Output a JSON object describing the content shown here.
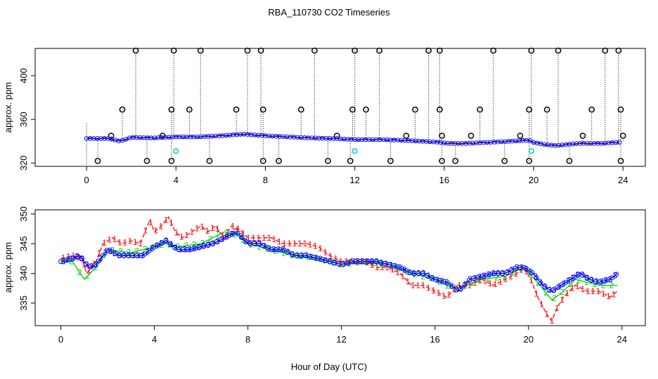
{
  "chart_data": [
    {
      "type": "scatter",
      "title": "RBA_110730  CO2 Timeseries",
      "xlabel": "",
      "ylabel": "approx. ppm",
      "xlim": [
        -2.3,
        25
      ],
      "ylim": [
        317,
        425
      ],
      "xticks": [
        0,
        4,
        8,
        12,
        16,
        20,
        24
      ],
      "xtick_labels": [
        "0",
        "4",
        "8",
        "12",
        "16",
        "20",
        "24"
      ],
      "yticks": [
        320,
        360,
        400
      ],
      "ytick_labels": [
        "320",
        "360",
        "400"
      ],
      "baseline": [
        [
          0.0,
          342.5
        ],
        [
          1.0,
          342.5
        ],
        [
          1.5,
          340
        ],
        [
          2.0,
          343.5
        ],
        [
          3.0,
          343
        ],
        [
          4.0,
          344
        ],
        [
          5.0,
          344
        ],
        [
          6.0,
          345
        ],
        [
          7.0,
          346.5
        ],
        [
          8.0,
          345
        ],
        [
          9.0,
          344
        ],
        [
          10.0,
          343
        ],
        [
          11.0,
          342.5
        ],
        [
          12.0,
          341.5
        ],
        [
          13.0,
          341.5
        ],
        [
          14.0,
          341
        ],
        [
          15.0,
          340
        ],
        [
          15.8,
          339
        ],
        [
          16.2,
          338
        ],
        [
          17.0,
          338
        ],
        [
          18.0,
          339
        ],
        [
          19.0,
          340
        ],
        [
          19.8,
          341
        ],
        [
          20.0,
          339
        ],
        [
          20.5,
          337
        ],
        [
          21.0,
          336
        ],
        [
          21.5,
          337
        ],
        [
          22.0,
          338
        ],
        [
          23.0,
          338
        ],
        [
          23.8,
          339
        ]
      ],
      "spikes": [
        {
          "x": 2.2,
          "y": 423
        },
        {
          "x": 3.9,
          "y": 423
        },
        {
          "x": 5.1,
          "y": 423
        },
        {
          "x": 7.2,
          "y": 423
        },
        {
          "x": 7.8,
          "y": 423
        },
        {
          "x": 10.2,
          "y": 423
        },
        {
          "x": 12.0,
          "y": 423
        },
        {
          "x": 13.1,
          "y": 423
        },
        {
          "x": 15.3,
          "y": 423
        },
        {
          "x": 15.8,
          "y": 423
        },
        {
          "x": 18.2,
          "y": 423
        },
        {
          "x": 19.9,
          "y": 423
        },
        {
          "x": 21.1,
          "y": 423
        },
        {
          "x": 23.2,
          "y": 423
        },
        {
          "x": 23.8,
          "y": 423
        },
        {
          "x": 1.6,
          "y": 369
        },
        {
          "x": 3.8,
          "y": 369
        },
        {
          "x": 4.6,
          "y": 369
        },
        {
          "x": 6.7,
          "y": 369
        },
        {
          "x": 7.9,
          "y": 369
        },
        {
          "x": 9.6,
          "y": 369
        },
        {
          "x": 11.9,
          "y": 369
        },
        {
          "x": 12.5,
          "y": 369
        },
        {
          "x": 14.7,
          "y": 369
        },
        {
          "x": 15.8,
          "y": 369
        },
        {
          "x": 17.6,
          "y": 369
        },
        {
          "x": 19.8,
          "y": 369
        },
        {
          "x": 20.6,
          "y": 369
        },
        {
          "x": 22.6,
          "y": 369
        },
        {
          "x": 23.9,
          "y": 369
        },
        {
          "x": 0.5,
          "y": 322
        },
        {
          "x": 2.7,
          "y": 322
        },
        {
          "x": 3.8,
          "y": 322
        },
        {
          "x": 5.5,
          "y": 322
        },
        {
          "x": 7.9,
          "y": 322
        },
        {
          "x": 8.6,
          "y": 322
        },
        {
          "x": 10.8,
          "y": 322
        },
        {
          "x": 11.8,
          "y": 322
        },
        {
          "x": 13.6,
          "y": 322
        },
        {
          "x": 15.9,
          "y": 322
        },
        {
          "x": 16.5,
          "y": 322
        },
        {
          "x": 18.7,
          "y": 322
        },
        {
          "x": 19.8,
          "y": 322
        },
        {
          "x": 21.6,
          "y": 322
        },
        {
          "x": 23.9,
          "y": 322
        },
        {
          "x": 1.1,
          "y": 345
        },
        {
          "x": 3.4,
          "y": 345
        },
        {
          "x": 11.2,
          "y": 345
        },
        {
          "x": 14.3,
          "y": 345
        },
        {
          "x": 15.9,
          "y": 345
        },
        {
          "x": 17.2,
          "y": 345
        },
        {
          "x": 19.4,
          "y": 345
        },
        {
          "x": 22.2,
          "y": 345
        },
        {
          "x": 24.0,
          "y": 345
        }
      ],
      "cyan_points": [
        {
          "x": 4.0,
          "y": 331
        },
        {
          "x": 12.0,
          "y": 331
        },
        {
          "x": 19.9,
          "y": 331
        }
      ]
    },
    {
      "type": "line",
      "title": "",
      "xlabel": "Hour of Day (UTC)",
      "ylabel": "approx. ppm",
      "xlim": [
        -1.1,
        25
      ],
      "ylim": [
        331.2,
        350.7
      ],
      "xticks": [
        0,
        4,
        8,
        12,
        16,
        20,
        24
      ],
      "xtick_labels": [
        "0",
        "4",
        "8",
        "12",
        "16",
        "20",
        "24"
      ],
      "yticks": [
        335,
        340,
        345,
        350
      ],
      "ytick_labels": [
        "335",
        "340",
        "345",
        "350"
      ],
      "series": [
        {
          "name": "1",
          "color": "#ff0000",
          "points": [
            [
              0.0,
              342.5
            ],
            [
              0.5,
              343
            ],
            [
              0.9,
              342.5
            ],
            [
              1.1,
              340
            ],
            [
              1.3,
              341
            ],
            [
              1.5,
              342
            ],
            [
              1.8,
              345
            ],
            [
              2.2,
              346
            ],
            [
              2.6,
              345
            ],
            [
              3.0,
              345.5
            ],
            [
              3.4,
              345
            ],
            [
              3.8,
              349
            ],
            [
              4.0,
              347
            ],
            [
              4.3,
              348
            ],
            [
              4.6,
              349.5
            ],
            [
              4.9,
              347
            ],
            [
              5.2,
              346
            ],
            [
              5.6,
              347
            ],
            [
              6.0,
              348
            ],
            [
              6.3,
              347
            ],
            [
              6.6,
              348
            ],
            [
              7.0,
              346
            ],
            [
              7.3,
              348
            ],
            [
              7.6,
              347.5
            ],
            [
              8.0,
              346
            ],
            [
              8.5,
              346
            ],
            [
              9.0,
              346
            ],
            [
              9.5,
              345
            ],
            [
              10.0,
              345
            ],
            [
              10.5,
              345
            ],
            [
              11.0,
              344.5
            ],
            [
              11.5,
              343
            ],
            [
              12.0,
              342
            ],
            [
              12.5,
              342
            ],
            [
              13.0,
              342
            ],
            [
              13.5,
              341
            ],
            [
              14.0,
              341
            ],
            [
              14.5,
              340
            ],
            [
              15.0,
              338
            ],
            [
              15.5,
              338
            ],
            [
              16.0,
              337
            ],
            [
              16.5,
              336
            ],
            [
              17.0,
              338
            ],
            [
              17.5,
              338
            ],
            [
              18.0,
              339
            ],
            [
              18.5,
              338
            ],
            [
              19.0,
              339
            ],
            [
              19.5,
              340
            ],
            [
              19.8,
              341
            ],
            [
              20.1,
              339
            ],
            [
              20.4,
              336
            ],
            [
              20.8,
              333
            ],
            [
              21.0,
              332
            ],
            [
              21.2,
              334
            ],
            [
              21.5,
              336
            ],
            [
              22.0,
              338
            ],
            [
              22.5,
              337
            ],
            [
              23.0,
              337
            ],
            [
              23.5,
              336
            ],
            [
              23.8,
              337
            ]
          ]
        },
        {
          "name": "2",
          "color": "#00cc00",
          "points": [
            [
              0.0,
              342
            ],
            [
              0.5,
              342
            ],
            [
              1.0,
              339
            ],
            [
              1.5,
              341
            ],
            [
              2.0,
              344
            ],
            [
              3.0,
              343.5
            ],
            [
              4.0,
              344.5
            ],
            [
              4.5,
              345
            ],
            [
              5.0,
              344.5
            ],
            [
              6.0,
              345
            ],
            [
              7.0,
              347
            ],
            [
              7.5,
              346.5
            ],
            [
              8.0,
              345
            ],
            [
              9.0,
              344
            ],
            [
              10.0,
              343
            ],
            [
              11.0,
              342.5
            ],
            [
              12.0,
              341.5
            ],
            [
              13.0,
              342
            ],
            [
              14.0,
              341.5
            ],
            [
              15.0,
              340
            ],
            [
              16.0,
              339
            ],
            [
              16.5,
              338
            ],
            [
              17.0,
              337.5
            ],
            [
              18.0,
              339
            ],
            [
              19.0,
              339.5
            ],
            [
              19.8,
              341
            ],
            [
              20.5,
              338
            ],
            [
              21.0,
              335.5
            ],
            [
              21.5,
              337
            ],
            [
              22.0,
              339
            ],
            [
              23.0,
              338
            ],
            [
              23.8,
              338
            ]
          ]
        },
        {
          "name": "3",
          "color": "#0000ff",
          "points": [
            [
              0.0,
              342
            ],
            [
              0.5,
              342.5
            ],
            [
              0.8,
              343
            ],
            [
              1.0,
              342
            ],
            [
              1.2,
              341
            ],
            [
              1.5,
              341.5
            ],
            [
              2.0,
              344
            ],
            [
              2.5,
              343
            ],
            [
              3.0,
              343
            ],
            [
              3.5,
              343
            ],
            [
              4.0,
              344.5
            ],
            [
              4.5,
              345.5
            ],
            [
              5.0,
              344
            ],
            [
              5.5,
              344
            ],
            [
              6.0,
              344.5
            ],
            [
              6.5,
              345
            ],
            [
              7.0,
              346
            ],
            [
              7.5,
              347
            ],
            [
              8.0,
              345
            ],
            [
              8.5,
              345
            ],
            [
              9.0,
              344
            ],
            [
              9.5,
              344
            ],
            [
              10.0,
              343
            ],
            [
              10.5,
              343
            ],
            [
              11.0,
              342.5
            ],
            [
              11.5,
              342
            ],
            [
              12.0,
              341.5
            ],
            [
              12.5,
              342
            ],
            [
              13.0,
              342
            ],
            [
              13.5,
              342
            ],
            [
              14.0,
              341.5
            ],
            [
              14.5,
              341
            ],
            [
              15.0,
              340
            ],
            [
              15.5,
              340
            ],
            [
              16.0,
              339
            ],
            [
              16.5,
              338.5
            ],
            [
              17.0,
              337
            ],
            [
              17.5,
              339
            ],
            [
              18.0,
              339.5
            ],
            [
              18.5,
              340
            ],
            [
              19.0,
              340
            ],
            [
              19.5,
              341
            ],
            [
              19.8,
              341
            ],
            [
              20.2,
              340
            ],
            [
              20.6,
              338
            ],
            [
              21.0,
              337
            ],
            [
              21.4,
              338
            ],
            [
              21.8,
              339
            ],
            [
              22.2,
              340
            ],
            [
              22.6,
              339
            ],
            [
              23.0,
              338.5
            ],
            [
              23.5,
              339
            ],
            [
              23.8,
              340
            ]
          ]
        }
      ]
    }
  ]
}
